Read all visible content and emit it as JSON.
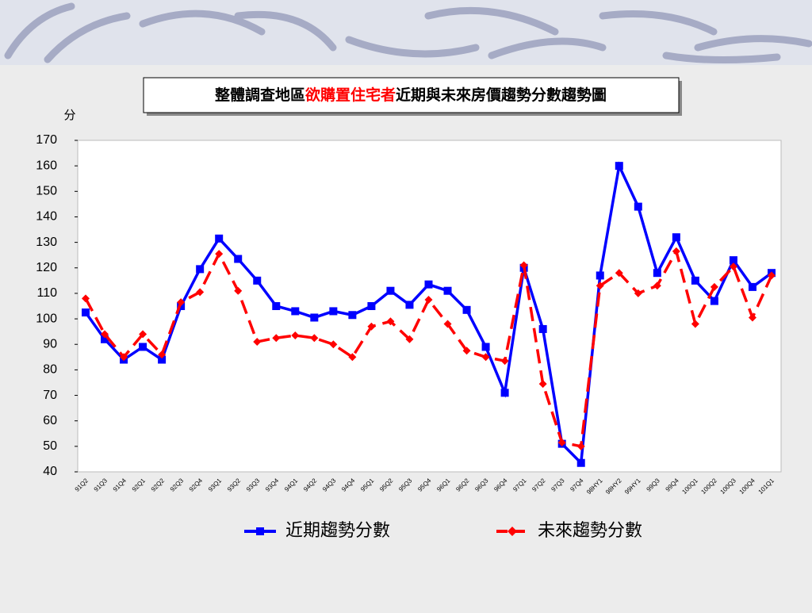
{
  "chart_data": {
    "type": "line",
    "title_parts": [
      "整體調查地區",
      "欲購置住宅者",
      "近期與未來房價趨勢分數趨勢圖"
    ],
    "y_label": "分",
    "categories": [
      "91Q2",
      "91Q3",
      "91Q4",
      "92Q1",
      "92Q2",
      "92Q3",
      "92Q4",
      "93Q1",
      "93Q2",
      "93Q3",
      "93Q4",
      "94Q1",
      "94Q2",
      "94Q3",
      "94Q4",
      "95Q1",
      "95Q2",
      "95Q3",
      "95Q4",
      "96Q1",
      "96Q2",
      "96Q3",
      "96Q4",
      "97Q1",
      "97Q2",
      "97Q3",
      "97Q4",
      "98HY1",
      "98HY2",
      "99HY1",
      "99Q3",
      "99Q4",
      "100Q1",
      "100Q2",
      "100Q3",
      "100Q4",
      "101Q1"
    ],
    "series": [
      {
        "name": "近期趨勢分數",
        "color": "#0000ff",
        "dashed": false,
        "marker": "square",
        "values": [
          102.5,
          92,
          84,
          89,
          84,
          105,
          119.5,
          131.5,
          123.5,
          115,
          105,
          103,
          100.5,
          103,
          101.5,
          105,
          111,
          105.5,
          113.5,
          111,
          103.5,
          89,
          71,
          120,
          96,
          51,
          43.5,
          117,
          160,
          144,
          118,
          132,
          115,
          107,
          123,
          112.5,
          118
        ]
      },
      {
        "name": "未來趨勢分數",
        "color": "#ff0000",
        "dashed": true,
        "marker": "diamond",
        "values": [
          108,
          94,
          85,
          94,
          86,
          106.5,
          110.5,
          125.5,
          111,
          91,
          92.5,
          93.5,
          92.5,
          90,
          85,
          97,
          99,
          92,
          107.5,
          98,
          87.5,
          85,
          83.5,
          121,
          74.5,
          51.5,
          50,
          113,
          118,
          110,
          113,
          126.5,
          98,
          112.5,
          120.5,
          100.5,
          117
        ]
      }
    ],
    "ylim": [
      40,
      170
    ],
    "yticks": [
      40,
      50,
      60,
      70,
      80,
      90,
      100,
      110,
      120,
      130,
      140,
      150,
      160,
      170
    ]
  }
}
